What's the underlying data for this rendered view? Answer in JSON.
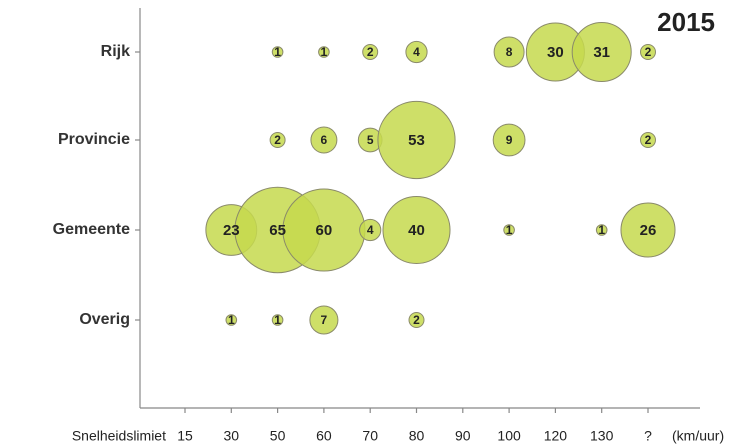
{
  "chart_data": {
    "type": "bubble",
    "title": "2015",
    "x_label": "Snelheidslimiet",
    "x_unit": "(km/uur)",
    "categories": [
      "15",
      "30",
      "50",
      "60",
      "70",
      "80",
      "90",
      "100",
      "120",
      "130",
      "?"
    ],
    "color": "#c6d94e",
    "series": [
      {
        "name": "Rijk",
        "values": [
          null,
          null,
          1,
          1,
          2,
          4,
          null,
          8,
          30,
          31,
          2
        ]
      },
      {
        "name": "Provincie",
        "values": [
          null,
          null,
          2,
          6,
          5,
          53,
          null,
          9,
          null,
          null,
          2
        ]
      },
      {
        "name": "Gemeente",
        "values": [
          null,
          23,
          65,
          60,
          4,
          40,
          null,
          1,
          null,
          1,
          26
        ]
      },
      {
        "name": "Overig",
        "values": [
          null,
          1,
          1,
          7,
          null,
          2,
          null,
          null,
          null,
          null,
          null
        ]
      }
    ]
  }
}
